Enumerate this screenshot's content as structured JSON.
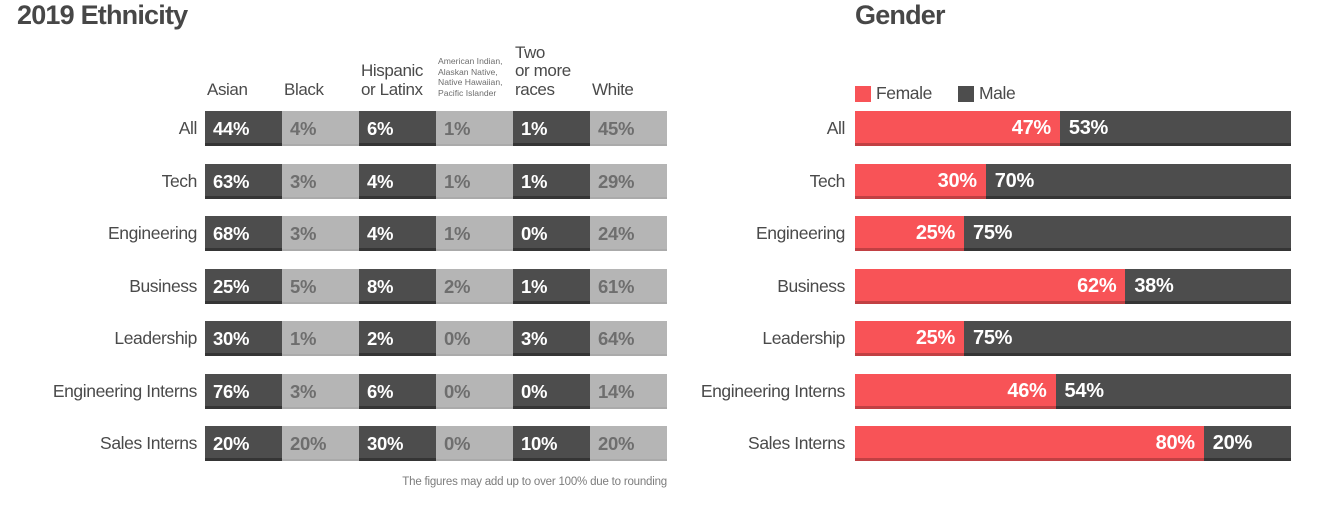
{
  "ethnicity": {
    "title": "2019 Ethnicity",
    "columns": [
      "Asian",
      "Black",
      "Hispanic\nor Latinx",
      "American Indian,\nAlaskan Native,\nNative Hawaiian,\nPacific Islander",
      "Two\nor more\nraces",
      "White"
    ],
    "rows": [
      {
        "label": "All",
        "values": [
          "44%",
          "4%",
          "6%",
          "1%",
          "1%",
          "45%"
        ]
      },
      {
        "label": "Tech",
        "values": [
          "63%",
          "3%",
          "4%",
          "1%",
          "1%",
          "29%"
        ]
      },
      {
        "label": "Engineering",
        "values": [
          "68%",
          "3%",
          "4%",
          "1%",
          "0%",
          "24%"
        ]
      },
      {
        "label": "Business",
        "values": [
          "25%",
          "5%",
          "8%",
          "2%",
          "1%",
          "61%"
        ]
      },
      {
        "label": "Leadership",
        "values": [
          "30%",
          "1%",
          "2%",
          "0%",
          "3%",
          "64%"
        ]
      },
      {
        "label": "Engineering Interns",
        "values": [
          "76%",
          "3%",
          "6%",
          "0%",
          "0%",
          "14%"
        ]
      },
      {
        "label": "Sales Interns",
        "values": [
          "20%",
          "20%",
          "30%",
          "0%",
          "10%",
          "20%"
        ]
      }
    ],
    "footnote": "The figures may add up to over 100% due to rounding"
  },
  "gender": {
    "title": "Gender",
    "legend": [
      {
        "label": "Female",
        "color": "#f85357"
      },
      {
        "label": "Male",
        "color": "#4d4d4d"
      }
    ],
    "rows": [
      {
        "label": "All",
        "female_pct": 47,
        "female_label": "47%",
        "male_label": "53%"
      },
      {
        "label": "Tech",
        "female_pct": 30,
        "female_label": "30%",
        "male_label": "70%"
      },
      {
        "label": "Engineering",
        "female_pct": 25,
        "female_label": "25%",
        "male_label": "75%"
      },
      {
        "label": "Business",
        "female_pct": 62,
        "female_label": "62%",
        "male_label": "38%"
      },
      {
        "label": "Leadership",
        "female_pct": 25,
        "female_label": "25%",
        "male_label": "75%"
      },
      {
        "label": "Engineering Interns",
        "female_pct": 46,
        "female_label": "46%",
        "male_label": "54%"
      },
      {
        "label": "Sales Interns",
        "female_pct": 80,
        "female_label": "80%",
        "male_label": "20%"
      }
    ]
  },
  "colors": {
    "accent_red": "#f85357",
    "dark_gray": "#4d4d4d",
    "light_gray": "#b5b5b5",
    "text_gray": "#4a4a4a"
  },
  "chart_data": [
    {
      "type": "table",
      "title": "2019 Ethnicity",
      "columns": [
        "Asian",
        "Black",
        "Hispanic or Latinx",
        "American Indian, Alaskan Native, Native Hawaiian, Pacific Islander",
        "Two or more races",
        "White"
      ],
      "categories": [
        "All",
        "Tech",
        "Engineering",
        "Business",
        "Leadership",
        "Engineering Interns",
        "Sales Interns"
      ],
      "values_pct": [
        [
          44,
          4,
          6,
          1,
          1,
          45
        ],
        [
          63,
          3,
          4,
          1,
          1,
          29
        ],
        [
          68,
          3,
          4,
          1,
          0,
          24
        ],
        [
          25,
          5,
          8,
          2,
          1,
          61
        ],
        [
          30,
          1,
          2,
          0,
          3,
          64
        ],
        [
          76,
          3,
          6,
          0,
          0,
          14
        ],
        [
          20,
          20,
          30,
          0,
          10,
          20
        ]
      ],
      "note": "The figures may add up to over 100% due to rounding"
    },
    {
      "type": "bar",
      "subtype": "stacked-horizontal",
      "title": "Gender",
      "categories": [
        "All",
        "Tech",
        "Engineering",
        "Business",
        "Leadership",
        "Engineering Interns",
        "Sales Interns"
      ],
      "series": [
        {
          "name": "Female",
          "values": [
            47,
            30,
            25,
            62,
            25,
            46,
            80
          ]
        },
        {
          "name": "Male",
          "values": [
            53,
            70,
            75,
            38,
            75,
            54,
            20
          ]
        }
      ],
      "xlim": [
        0,
        100
      ],
      "legend_position": "top",
      "grid": false
    }
  ]
}
